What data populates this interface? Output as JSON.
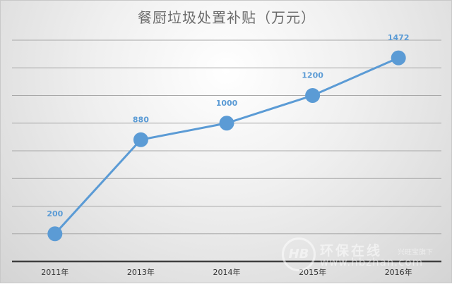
{
  "chart_data": {
    "type": "line",
    "title": "餐厨垃圾处置补贴（万元）",
    "categories": [
      "2011年",
      "2013年",
      "2014年",
      "2015年",
      "2016年"
    ],
    "values": [
      200,
      880,
      1000,
      1200,
      1472
    ],
    "data_labels": [
      "200",
      "880",
      "1000",
      "1200",
      "1472"
    ],
    "ylim": [
      0,
      1600
    ],
    "y_gridline_step": 200,
    "grid": true,
    "legend": "none",
    "line_color": "#5b9bd5",
    "label_color": "#5b9bd5"
  },
  "watermark": {
    "logo_text": "HB",
    "name": "环保在线",
    "tagline": "兴旺宝旗下",
    "url": "www.hbzhan.com"
  }
}
